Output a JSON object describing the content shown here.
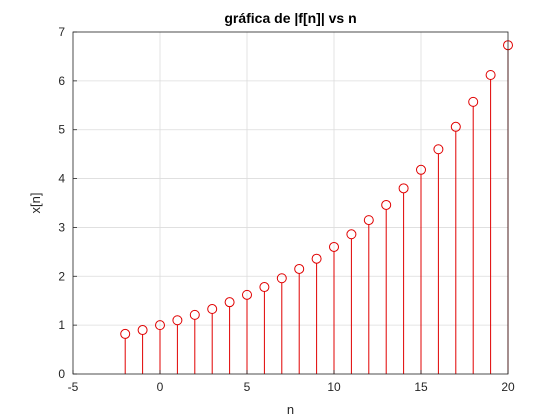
{
  "chart_data": {
    "type": "stem",
    "title": "gráfica de |f[n]| vs n",
    "xlabel": "n",
    "ylabel": "x[n]",
    "xlim": [
      -5,
      20
    ],
    "ylim": [
      0,
      7
    ],
    "x_ticks": [
      -5,
      0,
      5,
      10,
      15,
      20
    ],
    "y_ticks": [
      0,
      1,
      2,
      3,
      4,
      5,
      6,
      7
    ],
    "grid": true,
    "marker": "circle",
    "color": "#e00000",
    "x": [
      -2,
      -1,
      0,
      1,
      2,
      3,
      4,
      5,
      6,
      7,
      8,
      9,
      10,
      11,
      12,
      13,
      14,
      15,
      16,
      17,
      18,
      19,
      20
    ],
    "values": [
      0.82,
      0.9,
      1.0,
      1.1,
      1.21,
      1.33,
      1.47,
      1.62,
      1.78,
      1.96,
      2.15,
      2.36,
      2.6,
      2.86,
      3.15,
      3.46,
      3.8,
      4.18,
      4.6,
      5.06,
      5.57,
      6.12,
      6.73
    ]
  }
}
